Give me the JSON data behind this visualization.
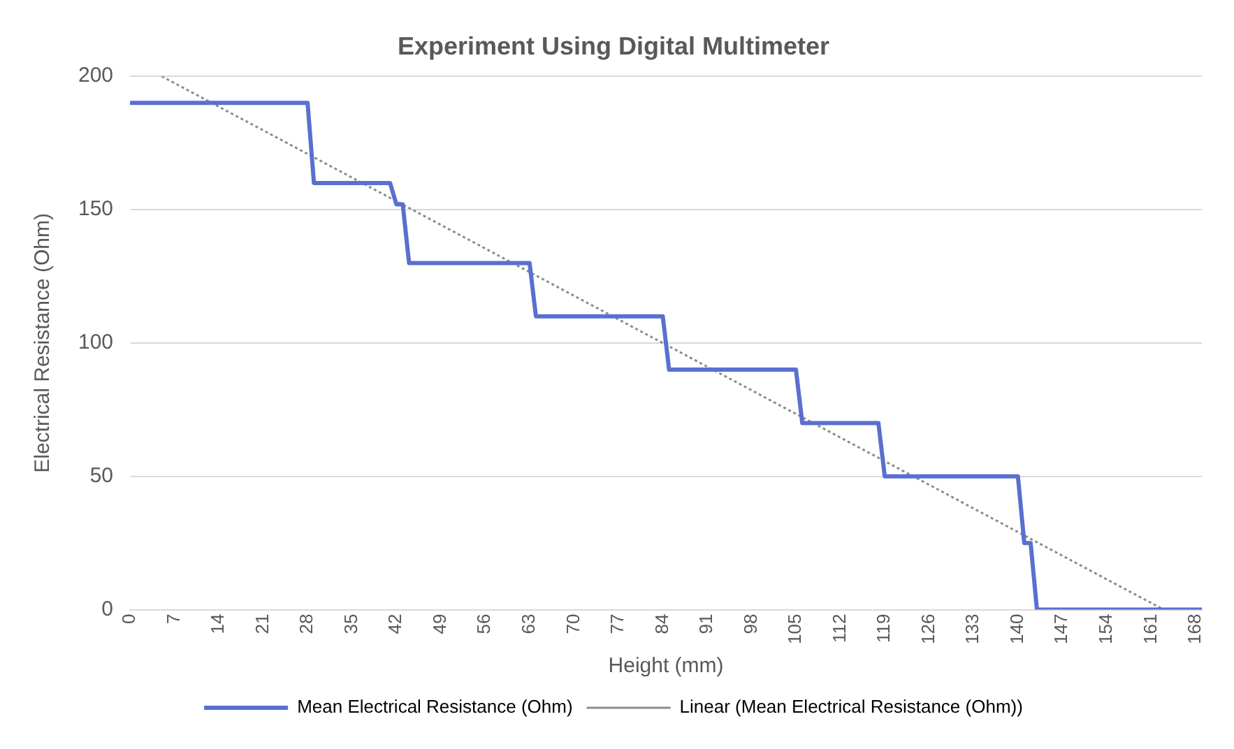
{
  "chart_data": {
    "type": "line",
    "title": "Experiment Using Digital Multimeter",
    "xlabel": "Height (mm)",
    "ylabel": "Electrical Resistance (Ohm)",
    "xlim": [
      0,
      169
    ],
    "xticks": [
      0,
      7,
      14,
      21,
      28,
      35,
      42,
      49,
      56,
      63,
      70,
      77,
      84,
      91,
      98,
      105,
      112,
      119,
      126,
      133,
      140,
      147,
      154,
      161,
      168
    ],
    "ylim": [
      0,
      200
    ],
    "yticks": [
      0,
      50,
      100,
      150,
      200
    ],
    "grid": "y",
    "legend": "bottom",
    "marker": "none",
    "series": [
      {
        "name": "Mean Electrical Resistance (Ohm)",
        "color": "#5a6fd0",
        "line_style": "solid",
        "x": [
          0,
          28,
          29,
          41,
          42,
          43,
          44,
          63,
          64,
          84,
          85,
          105,
          106,
          118,
          119,
          140,
          141,
          142,
          143,
          169
        ],
        "values": [
          190,
          190,
          160,
          160,
          152,
          152,
          130,
          130,
          110,
          110,
          90,
          90,
          70,
          70,
          50,
          50,
          25,
          25,
          0,
          0
        ]
      },
      {
        "name": "Linear (Mean Electrical Resistance (Ohm))",
        "color": "#8c8c8c",
        "line_style": "dotted",
        "x": [
          5,
          163
        ],
        "values": [
          200,
          0
        ]
      }
    ]
  }
}
